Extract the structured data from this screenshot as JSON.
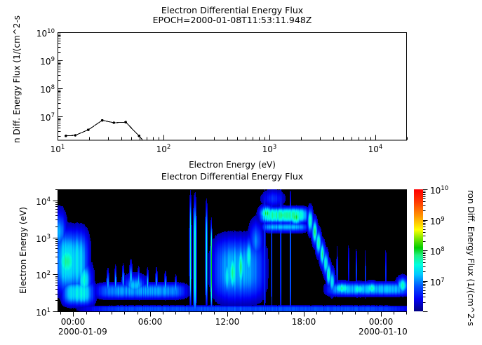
{
  "figure": {
    "background": "#ffffff",
    "text_color": "#000000"
  },
  "chart_data": [
    {
      "type": "line",
      "title": "Electron Differential Energy Flux",
      "subtitle": "EPOCH=2000-01-08T11:53:11.948Z",
      "xlabel": "Electron Energy (eV)",
      "ylabel": "n Diff. Energy Flux (1/(cm^2-s",
      "ylabel_truncated": true,
      "xscale": "log",
      "yscale": "log",
      "xlim": [
        10,
        20000
      ],
      "ylim": [
        1400000,
        10000000000
      ],
      "tick_base": 10,
      "x_tick_exponents": [
        1,
        2,
        3,
        4
      ],
      "y_tick_exponents": [
        7,
        8,
        9,
        10
      ],
      "line_color": "#000000",
      "marker": "dot",
      "points_x_eV": [
        12,
        14.7,
        19.5,
        26.5,
        34,
        44,
        59,
        65
      ],
      "points_y_flux": [
        2000000,
        2100000,
        3300000,
        7200000,
        5900000,
        6200000,
        2000000,
        1300000
      ]
    },
    {
      "type": "heatmap",
      "title": "Electron Differential Energy Flux",
      "ylabel": "Electron Energy (eV)",
      "yscale": "log",
      "ylim": [
        10,
        20000
      ],
      "tick_base": 10,
      "y_tick_exponents": [
        1,
        2,
        3,
        4
      ],
      "background": "#000000",
      "x_axis": {
        "start_hours": -1.23,
        "end_hours": 26.05,
        "major_tick_hours": [
          0,
          6,
          12,
          18,
          24
        ],
        "major_tick_labels": [
          "00:00",
          "06:00",
          "12:00",
          "18:00",
          "00:00"
        ],
        "minor_tick_interval_hours": 1,
        "date_labels": [
          "2000-01-09",
          "2000-01-10"
        ]
      },
      "colorbar": {
        "label": "ron Diff. Energy Flux (1/(cm^2-s",
        "label_truncated": true,
        "scale": "log",
        "lim": [
          1000000,
          10000000000
        ],
        "tick_exponents": [
          7,
          8,
          9,
          10
        ],
        "colormap_stops": [
          [
            0.0,
            "#000085"
          ],
          [
            0.1,
            "#0000F5"
          ],
          [
            0.2,
            "#0050FF"
          ],
          [
            0.3,
            "#00C8FF"
          ],
          [
            0.38,
            "#00FFE0"
          ],
          [
            0.46,
            "#20F080"
          ],
          [
            0.52,
            "#00CC00"
          ],
          [
            0.6,
            "#80E800"
          ],
          [
            0.67,
            "#FFFF00"
          ],
          [
            0.78,
            "#FF9800"
          ],
          [
            0.9,
            "#FF3800"
          ],
          [
            1.0,
            "#FF0000"
          ]
        ]
      },
      "features_note": "spectral regions: t=hours from 2000-01-09T00:00, e=log10(energy eV), a=colormap intensity 0-1",
      "features": [
        {
          "t": -0.15,
          "tw": 1.3,
          "pt": 4,
          "e": 2.35,
          "ew": 0.8,
          "pe": 3,
          "a": 0.33
        },
        {
          "t": -0.45,
          "tw": 0.85,
          "pt": 2,
          "e": 2.35,
          "ew": 0.5,
          "pe": 2,
          "a": 0.42
        },
        {
          "t": -1.1,
          "tw": 0.5,
          "pt": 2,
          "e": 3.15,
          "ew": 0.5,
          "pe": 2,
          "a": 0.28
        },
        {
          "t": 0.85,
          "tw": 0.55,
          "pt": 2,
          "e": 1.85,
          "ew": 0.45,
          "pe": 2,
          "a": 0.36
        },
        {
          "t": 0.4,
          "tw": 1.2,
          "pt": 4,
          "e": 1.5,
          "ew": 0.32,
          "pe": 3,
          "a": 0.34
        },
        {
          "t": 5.3,
          "tw": 3.5,
          "pt": 8,
          "e": 1.55,
          "ew": 0.2,
          "pe": 3,
          "a": 0.25
        },
        {
          "t": 2.7,
          "tw": 0.09,
          "pt": 2,
          "e": 1.75,
          "ew": 0.3,
          "pe": 2,
          "a": 0.3
        },
        {
          "t": 3.3,
          "tw": 0.07,
          "pt": 2,
          "e": 1.8,
          "ew": 0.32,
          "pe": 2,
          "a": 0.31
        },
        {
          "t": 3.9,
          "tw": 0.08,
          "pt": 2,
          "e": 1.85,
          "ew": 0.3,
          "pe": 2,
          "a": 0.3
        },
        {
          "t": 4.5,
          "tw": 0.1,
          "pt": 2,
          "e": 1.9,
          "ew": 0.35,
          "pe": 2,
          "a": 0.33
        },
        {
          "t": 5.1,
          "tw": 0.07,
          "pt": 2,
          "e": 1.8,
          "ew": 0.3,
          "pe": 2,
          "a": 0.3
        },
        {
          "t": 5.8,
          "tw": 0.08,
          "pt": 2,
          "e": 1.75,
          "ew": 0.3,
          "pe": 2,
          "a": 0.3
        },
        {
          "t": 6.5,
          "tw": 0.07,
          "pt": 2,
          "e": 1.8,
          "ew": 0.28,
          "pe": 2,
          "a": 0.29
        },
        {
          "t": 7.2,
          "tw": 0.08,
          "pt": 2,
          "e": 1.7,
          "ew": 0.28,
          "pe": 2,
          "a": 0.28
        },
        {
          "t": 8.0,
          "tw": 0.07,
          "pt": 2,
          "e": 1.65,
          "ew": 0.25,
          "pe": 2,
          "a": 0.27
        },
        {
          "t": 4.8,
          "tw": 0.8,
          "pt": 2,
          "e": 1.7,
          "ew": 0.25,
          "pe": 2,
          "a": 0.3
        },
        {
          "t": 9.15,
          "tw": 0.07,
          "pt": 2,
          "e": 2.6,
          "ew": 1.35,
          "pe": 4,
          "a": 0.4
        },
        {
          "t": 9.5,
          "tw": 0.1,
          "pt": 2,
          "e": 2.4,
          "ew": 1.45,
          "pe": 4,
          "a": 0.46
        },
        {
          "t": 10.4,
          "tw": 0.07,
          "pt": 2,
          "e": 2.5,
          "ew": 1.25,
          "pe": 4,
          "a": 0.4
        },
        {
          "t": 10.78,
          "tw": 0.05,
          "pt": 2,
          "e": 2.2,
          "ew": 1.05,
          "pe": 4,
          "a": 0.58
        },
        {
          "t": 12.9,
          "tw": 1.95,
          "pt": 4,
          "e": 2.15,
          "ew": 0.8,
          "pe": 3,
          "a": 0.28
        },
        {
          "t": 12.0,
          "tw": 0.2,
          "pt": 2,
          "e": 1.95,
          "ew": 0.5,
          "pe": 2,
          "a": 0.38
        },
        {
          "t": 12.45,
          "tw": 0.3,
          "pt": 2,
          "e": 2.05,
          "ew": 0.5,
          "pe": 2,
          "a": 0.44
        },
        {
          "t": 13.1,
          "tw": 0.3,
          "pt": 2,
          "e": 2.2,
          "ew": 0.55,
          "pe": 2,
          "a": 0.42
        },
        {
          "t": 13.7,
          "tw": 0.28,
          "pt": 2,
          "e": 2.45,
          "ew": 0.5,
          "pe": 2,
          "a": 0.38
        },
        {
          "t": 14.25,
          "tw": 0.5,
          "pt": 2,
          "e": 2.9,
          "ew": 0.5,
          "pe": 2,
          "a": 0.24
        },
        {
          "t": 16.45,
          "tw": 1.85,
          "pt": 8,
          "e": 3.6,
          "ew": 0.2,
          "pe": 3,
          "a": 0.4
        },
        {
          "t": 15.1,
          "tw": 0.5,
          "pt": 2,
          "e": 3.65,
          "ew": 0.18,
          "pe": 2,
          "a": 0.46
        },
        {
          "t": 16.35,
          "tw": 0.45,
          "pt": 2,
          "e": 3.6,
          "ew": 0.18,
          "pe": 2,
          "a": 0.44
        },
        {
          "t": 17.4,
          "tw": 0.5,
          "pt": 2,
          "e": 3.55,
          "ew": 0.2,
          "pe": 2,
          "a": 0.46
        },
        {
          "t": 16.5,
          "tw": 1.75,
          "pt": 8,
          "e": 3.28,
          "ew": 0.12,
          "pe": 2,
          "a": 0.27
        },
        {
          "t": 15.6,
          "tw": 0.8,
          "pt": 2,
          "e": 4.05,
          "ew": 0.22,
          "pe": 2,
          "a": 0.15
        },
        {
          "t": 14.95,
          "tw": 0.05,
          "pt": 2,
          "e": 2.6,
          "ew": 1.6,
          "pe": 6,
          "a": 0.22
        },
        {
          "t": 15.5,
          "tw": 0.04,
          "pt": 2,
          "e": 2.5,
          "ew": 1.5,
          "pe": 6,
          "a": 0.2
        },
        {
          "t": 16.2,
          "tw": 0.04,
          "pt": 2,
          "e": 2.6,
          "ew": 1.7,
          "pe": 6,
          "a": 0.24
        },
        {
          "t": 16.95,
          "tw": 0.05,
          "pt": 2,
          "e": 2.5,
          "ew": 1.6,
          "pe": 6,
          "a": 0.26
        },
        {
          "t": 18.5,
          "tw": 0.2,
          "pt": 2,
          "e": 3.45,
          "ew": 0.3,
          "pe": 2,
          "a": 0.44
        },
        {
          "t": 18.85,
          "tw": 0.2,
          "pt": 2,
          "e": 3.15,
          "ew": 0.3,
          "pe": 2,
          "a": 0.44
        },
        {
          "t": 19.15,
          "tw": 0.2,
          "pt": 2,
          "e": 2.85,
          "ew": 0.3,
          "pe": 2,
          "a": 0.42
        },
        {
          "t": 19.45,
          "tw": 0.2,
          "pt": 2,
          "e": 2.55,
          "ew": 0.3,
          "pe": 2,
          "a": 0.42
        },
        {
          "t": 19.7,
          "tw": 0.2,
          "pt": 2,
          "e": 2.3,
          "ew": 0.3,
          "pe": 2,
          "a": 0.4
        },
        {
          "t": 19.95,
          "tw": 0.2,
          "pt": 2,
          "e": 2.0,
          "ew": 0.3,
          "pe": 2,
          "a": 0.4
        },
        {
          "t": 20.2,
          "tw": 0.2,
          "pt": 2,
          "e": 1.8,
          "ew": 0.3,
          "pe": 2,
          "a": 0.38
        },
        {
          "t": 23.0,
          "tw": 3.2,
          "pt": 8,
          "e": 1.6,
          "ew": 0.17,
          "pe": 3,
          "a": 0.28
        },
        {
          "t": 21.0,
          "tw": 0.7,
          "pt": 2,
          "e": 1.62,
          "ew": 0.15,
          "pe": 2,
          "a": 0.4
        },
        {
          "t": 22.3,
          "tw": 0.55,
          "pt": 2,
          "e": 1.6,
          "ew": 0.15,
          "pe": 2,
          "a": 0.38
        },
        {
          "t": 23.3,
          "tw": 0.45,
          "pt": 2,
          "e": 1.62,
          "ew": 0.15,
          "pe": 2,
          "a": 0.4
        },
        {
          "t": 25.7,
          "tw": 0.4,
          "pt": 2,
          "e": 1.7,
          "ew": 0.2,
          "pe": 2,
          "a": 0.38
        },
        {
          "t": 20.6,
          "tw": 0.05,
          "pt": 2,
          "e": 2.1,
          "ew": 0.5,
          "pe": 2,
          "a": 0.2
        },
        {
          "t": 21.5,
          "tw": 0.04,
          "pt": 2,
          "e": 2.2,
          "ew": 0.5,
          "pe": 2,
          "a": 0.18
        },
        {
          "t": 22.1,
          "tw": 0.05,
          "pt": 2,
          "e": 2.1,
          "ew": 0.45,
          "pe": 2,
          "a": 0.2
        },
        {
          "t": 22.8,
          "tw": 0.04,
          "pt": 2,
          "e": 2.0,
          "ew": 0.5,
          "pe": 2,
          "a": 0.18
        },
        {
          "t": 24.4,
          "tw": 0.05,
          "pt": 2,
          "e": 2.05,
          "ew": 0.5,
          "pe": 2,
          "a": 0.17
        },
        {
          "t": 13.6,
          "tw": 12.7,
          "pt": 12,
          "e": 1.06,
          "ew": 0.09,
          "pe": 4,
          "a": 0.19
        }
      ]
    }
  ]
}
